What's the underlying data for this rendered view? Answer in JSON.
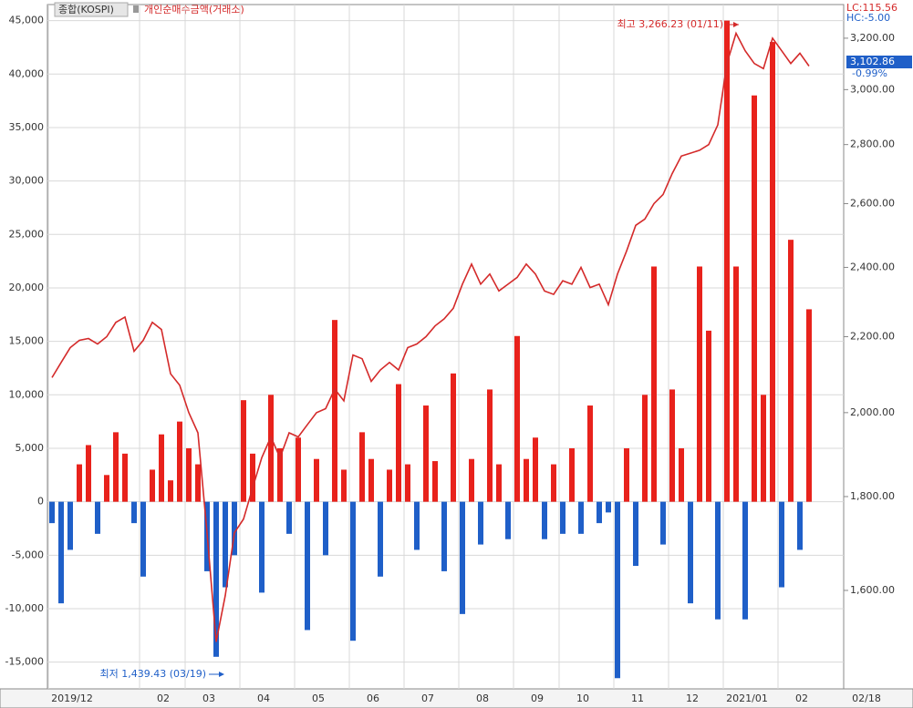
{
  "chart_data": {
    "type": "combo",
    "legend": "top-left",
    "grid": true,
    "categories": [
      "2019/12",
      null,
      null,
      null,
      null,
      null,
      null,
      null,
      null,
      null,
      "02",
      null,
      null,
      null,
      null,
      "03",
      null,
      null,
      null,
      null,
      null,
      "04",
      null,
      null,
      null,
      null,
      null,
      "05",
      null,
      null,
      null,
      null,
      null,
      "06",
      null,
      null,
      null,
      null,
      null,
      "07",
      null,
      null,
      null,
      null,
      null,
      "08",
      null,
      null,
      null,
      null,
      null,
      "09",
      null,
      null,
      null,
      null,
      "10",
      null,
      null,
      null,
      null,
      null,
      "11",
      null,
      null,
      null,
      null,
      null,
      "12",
      null,
      null,
      null,
      null,
      null,
      "2021/01",
      null,
      null,
      null,
      null,
      null,
      "02",
      null,
      null,
      null
    ],
    "end_date_label": "02/18",
    "series": [
      {
        "name": "종합(KOSPI)",
        "type": "line",
        "axis": "y2",
        "color": "#d42a2a",
        "values": [
          2090,
          2130,
          2170,
          2190,
          2195,
          2180,
          2200,
          2240,
          2255,
          2160,
          2190,
          2240,
          2220,
          2100,
          2070,
          2000,
          1950,
          1720,
          1500,
          1590,
          1720,
          1750,
          1820,
          1890,
          1940,
          1890,
          1950,
          1940,
          1970,
          2000,
          2010,
          2060,
          2030,
          2150,
          2140,
          2080,
          2110,
          2130,
          2110,
          2170,
          2180,
          2200,
          2230,
          2250,
          2280,
          2350,
          2410,
          2350,
          2380,
          2330,
          2350,
          2370,
          2410,
          2380,
          2330,
          2320,
          2360,
          2350,
          2400,
          2340,
          2350,
          2290,
          2380,
          2450,
          2530,
          2550,
          2600,
          2630,
          2700,
          2760,
          2770,
          2780,
          2800,
          2870,
          3100,
          3220,
          3150,
          3100,
          3080,
          3200,
          3150,
          3100,
          3140,
          3090
        ]
      },
      {
        "name": "개인순매수금액(거래소)",
        "type": "bar",
        "positive_color": "#e8221c",
        "negative_color": "#1f5fc8",
        "values": [
          -2000,
          -9500,
          -4500,
          3500,
          5300,
          -3000,
          2500,
          6500,
          4500,
          -2000,
          -7000,
          3000,
          6300,
          2000,
          7500,
          5000,
          3500,
          -6500,
          -14500,
          -8000,
          -5000,
          9500,
          4500,
          -8500,
          10000,
          5000,
          -3000,
          6000,
          -12000,
          4000,
          -5000,
          17000,
          3000,
          -13000,
          6500,
          4000,
          -7000,
          3000,
          11000,
          3500,
          -4500,
          9000,
          3800,
          -6500,
          12000,
          -10500,
          4000,
          -4000,
          10500,
          3500,
          -3500,
          15500,
          4000,
          6000,
          -3500,
          3500,
          -3000,
          5000,
          -3000,
          9000,
          -2000,
          -1000,
          -16500,
          5000,
          -6000,
          10000,
          22000,
          -4000,
          10500,
          5000,
          -9500,
          22000,
          16000,
          -11000,
          45000,
          22000,
          -11000,
          38000,
          10000,
          43000,
          -8000,
          24500,
          -4500,
          18000
        ]
      }
    ],
    "ylim": [
      -17500,
      46500
    ],
    "yticks": [
      {
        "value": -15000,
        "label": "-15,000"
      },
      {
        "value": -10000,
        "label": "-10,000"
      },
      {
        "value": -5000,
        "label": "-5,000"
      },
      0,
      {
        "value": 5000,
        "label": "5,000"
      },
      {
        "value": 10000,
        "label": "10,000"
      },
      {
        "value": 15000,
        "label": "15,000"
      },
      {
        "value": 20000,
        "label": "20,000"
      },
      {
        "value": 25000,
        "label": "25,000"
      },
      {
        "value": 30000,
        "label": "30,000"
      },
      {
        "value": 35000,
        "label": "35,000"
      },
      {
        "value": 40000,
        "label": "40,000"
      },
      {
        "value": 45000,
        "label": "45,000"
      }
    ],
    "y2lim": [
      1414,
      3338
    ],
    "y2_log": true,
    "y2ticks": [
      {
        "value": 1600,
        "label": "1,600.00"
      },
      {
        "value": 1800,
        "label": "1,800.00"
      },
      {
        "value": 2000,
        "label": "2,000.00"
      },
      {
        "value": 2200,
        "label": "2,200.00"
      },
      {
        "value": 2400,
        "label": "2,400.00"
      },
      {
        "value": 2600,
        "label": "2,600.00"
      },
      {
        "value": 2800,
        "label": "2,800.00"
      },
      {
        "value": 3000,
        "label": "3,000.00"
      },
      {
        "value": 3200,
        "label": "3,200.00"
      }
    ],
    "annotations": {
      "high": "최고 3,266.23 (01/11)",
      "low": "최저 1,439.43 (03/19)",
      "last": "3,102.86",
      "change": "-0.99%",
      "lc": "LC:115.56",
      "hc": "HC:-5.00"
    }
  }
}
